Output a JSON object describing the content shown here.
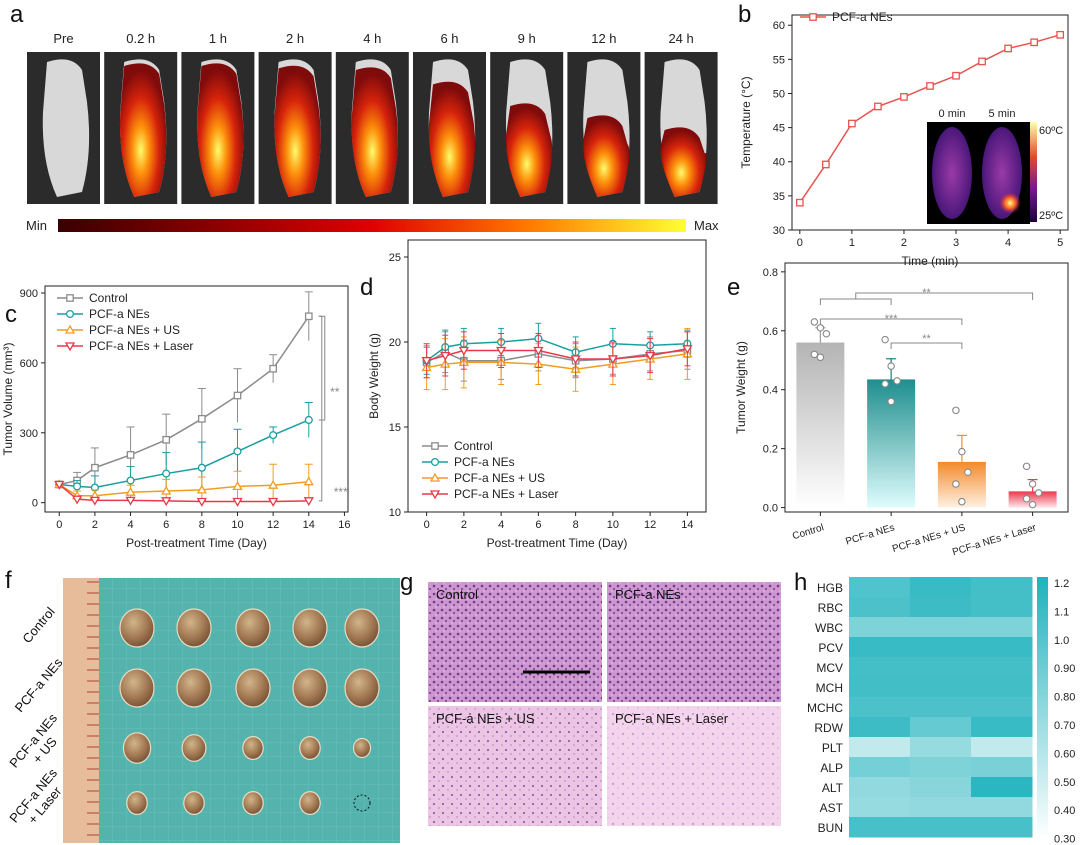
{
  "panel_letters": [
    "a",
    "b",
    "c",
    "d",
    "e",
    "f",
    "g",
    "h"
  ],
  "panel_a": {
    "timepoints": [
      "Pre",
      "0.2 h",
      "1 h",
      "2 h",
      "4 h",
      "6 h",
      "9 h",
      "12 h",
      "24 h"
    ],
    "intensity": [
      0,
      0.95,
      0.95,
      0.92,
      0.9,
      0.72,
      0.45,
      0.3,
      0.15
    ],
    "colorbar_min": "Min",
    "colorbar_max": "Max"
  },
  "panel_b_inset": {
    "labels": [
      "0 min",
      "5 min"
    ],
    "scale_max": "60ºC",
    "scale_min": "25ºC"
  },
  "panel_f": {
    "row_labels": [
      "Control",
      "PCF-a NEs",
      "PCF-a NEs\n+ US",
      "PCF-a NEs\n+ Laser"
    ],
    "tumors_per_row": [
      5,
      5,
      5,
      4
    ],
    "tumor_size_rel": [
      [
        1.0,
        1.0,
        1.0,
        1.0,
        1.0
      ],
      [
        1.0,
        1.0,
        1.0,
        1.0,
        1.0
      ],
      [
        0.8,
        0.7,
        0.6,
        0.6,
        0.5
      ],
      [
        0.6,
        0.6,
        0.6,
        0.6
      ]
    ]
  },
  "panel_g": {
    "labels": [
      "Control",
      "PCF-a NEs",
      "PCF-a NEs + US",
      "PCF-a NEs + Laser"
    ]
  },
  "colors": {
    "control": "#8c8c8c",
    "nes": "#1b9ea0",
    "us": "#f39c1f",
    "laser": "#e8394b",
    "b_line": "#e8534f",
    "heat_teal": "#1fb2bd"
  },
  "chart_data": [
    {
      "id": "b",
      "type": "line",
      "x": [
        0,
        0.5,
        1,
        1.5,
        2,
        2.5,
        3,
        3.5,
        4,
        4.5,
        5
      ],
      "series": [
        {
          "name": "PCF-a NEs",
          "values": [
            34.0,
            39.6,
            45.6,
            48.1,
            49.5,
            51.1,
            52.6,
            54.7,
            56.6,
            57.5,
            58.6
          ]
        }
      ],
      "xlabel": "Time (min)",
      "ylabel": "Temperature (°C)",
      "xlim": [
        0,
        5
      ],
      "ylim": [
        30,
        60
      ],
      "xticks": [
        0,
        1,
        2,
        3,
        4,
        5
      ],
      "yticks": [
        30,
        35,
        40,
        45,
        50,
        55,
        60
      ]
    },
    {
      "id": "c",
      "type": "line",
      "x": [
        0,
        1,
        2,
        4,
        6,
        8,
        10,
        12,
        14
      ],
      "series": [
        {
          "name": "Control",
          "values": [
            78,
            95,
            150,
            205,
            270,
            360,
            460,
            575,
            800
          ],
          "err": [
            0,
            35,
            85,
            120,
            110,
            130,
            115,
            60,
            105
          ]
        },
        {
          "name": "PCF-a NEs",
          "values": [
            78,
            70,
            65,
            95,
            125,
            150,
            220,
            290,
            355
          ],
          "err": [
            0,
            25,
            50,
            60,
            90,
            110,
            95,
            35,
            75
          ]
        },
        {
          "name": "PCF-a NEs + US",
          "values": [
            78,
            30,
            30,
            45,
            50,
            55,
            70,
            75,
            90
          ],
          "err": [
            0,
            20,
            25,
            30,
            50,
            55,
            65,
            90,
            75
          ]
        },
        {
          "name": "PCF-a NEs + Laser",
          "values": [
            78,
            15,
            10,
            10,
            8,
            5,
            5,
            5,
            8
          ],
          "err": [
            0,
            10,
            10,
            10,
            8,
            5,
            5,
            5,
            8
          ]
        }
      ],
      "xlabel": "Post-treatment Time (Day)",
      "ylabel": "Tumor Volume (mm³)",
      "xlim": [
        0,
        16
      ],
      "ylim": [
        0,
        900
      ],
      "xticks": [
        0,
        2,
        4,
        6,
        8,
        10,
        12,
        14,
        16
      ],
      "yticks": [
        0,
        300,
        600,
        900
      ],
      "annotations": [
        "**",
        "***"
      ]
    },
    {
      "id": "d",
      "type": "line",
      "x": [
        0,
        1,
        2,
        4,
        6,
        8,
        10,
        12,
        14
      ],
      "series": [
        {
          "name": "Control",
          "values": [
            18.8,
            19.4,
            18.9,
            18.9,
            19.3,
            18.9,
            19.0,
            19.3,
            19.5
          ],
          "err": [
            0.9,
            1.2,
            1.2,
            1.1,
            1.0,
            1.0,
            0.9,
            1.0,
            1.1
          ]
        },
        {
          "name": "PCF-a NEs",
          "values": [
            18.9,
            19.7,
            19.9,
            20.0,
            20.2,
            19.4,
            19.9,
            19.8,
            19.9
          ],
          "err": [
            0.8,
            1.0,
            0.9,
            0.8,
            0.9,
            0.9,
            0.9,
            0.8,
            0.8
          ]
        },
        {
          "name": "PCF-a NEs + US",
          "values": [
            18.5,
            18.7,
            18.8,
            18.8,
            18.7,
            18.4,
            18.7,
            19.0,
            19.3
          ],
          "err": [
            1.3,
            1.5,
            1.5,
            1.3,
            1.2,
            1.3,
            1.2,
            1.2,
            1.5
          ]
        },
        {
          "name": "PCF-a NEs + Laser",
          "values": [
            18.9,
            19.2,
            19.5,
            19.5,
            19.5,
            19.0,
            19.0,
            19.2,
            19.6
          ],
          "err": [
            1.0,
            1.2,
            1.1,
            1.0,
            1.0,
            1.0,
            1.0,
            1.0,
            1.0
          ]
        }
      ],
      "xlabel": "Post-treatment Time (Day)",
      "ylabel": "Body Weight (g)",
      "xlim": [
        -1,
        15
      ],
      "ylim": [
        10,
        26
      ],
      "xticks": [
        0,
        2,
        4,
        6,
        8,
        10,
        12,
        14
      ],
      "yticks": [
        10,
        15,
        20,
        25
      ]
    },
    {
      "id": "e",
      "type": "bar",
      "categories": [
        "Control",
        "PCF-a NEs",
        "PCF-a NEs + US",
        "PCF-a NEs + Laser"
      ],
      "values": [
        0.56,
        0.435,
        0.155,
        0.055
      ],
      "err": [
        0.05,
        0.07,
        0.09,
        0.04
      ],
      "points": [
        [
          0.63,
          0.61,
          0.59,
          0.52,
          0.51
        ],
        [
          0.57,
          0.48,
          0.43,
          0.42,
          0.36
        ],
        [
          0.33,
          0.19,
          0.12,
          0.08,
          0.02
        ],
        [
          0.14,
          0.08,
          0.05,
          0.03,
          0.01
        ]
      ],
      "ylabel": "Tumor Weight (g)",
      "ylim": [
        0,
        0.8
      ],
      "yticks": [
        0.0,
        0.2,
        0.4,
        0.6,
        0.8
      ],
      "annotations": [
        "**",
        "***",
        "**"
      ]
    },
    {
      "id": "h",
      "type": "heatmap",
      "rows": [
        "HGB",
        "RBC",
        "WBC",
        "PCV",
        "MCV",
        "MCH",
        "MCHC",
        "RDW",
        "PLT",
        "ALP",
        "ALT",
        "AST",
        "BUN"
      ],
      "values": [
        [
          1.0,
          1.1,
          1.05
        ],
        [
          1.02,
          1.08,
          1.05
        ],
        [
          0.82,
          0.82,
          0.82
        ],
        [
          1.1,
          1.1,
          1.1
        ],
        [
          1.05,
          1.05,
          1.05
        ],
        [
          1.06,
          1.06,
          1.06
        ],
        [
          1.02,
          1.02,
          1.02
        ],
        [
          1.08,
          0.92,
          1.1
        ],
        [
          0.55,
          0.72,
          0.55
        ],
        [
          0.86,
          0.82,
          0.84
        ],
        [
          0.74,
          0.78,
          1.15
        ],
        [
          0.72,
          0.74,
          0.74
        ],
        [
          1.04,
          1.04,
          1.04
        ]
      ],
      "colorbar_ticks": [
        "1.2",
        "1.1",
        "1.0",
        "0.90",
        "0.80",
        "0.70",
        "0.60",
        "0.50",
        "0.40",
        "0.30"
      ],
      "vmin": 0.3,
      "vmax": 1.2
    }
  ]
}
